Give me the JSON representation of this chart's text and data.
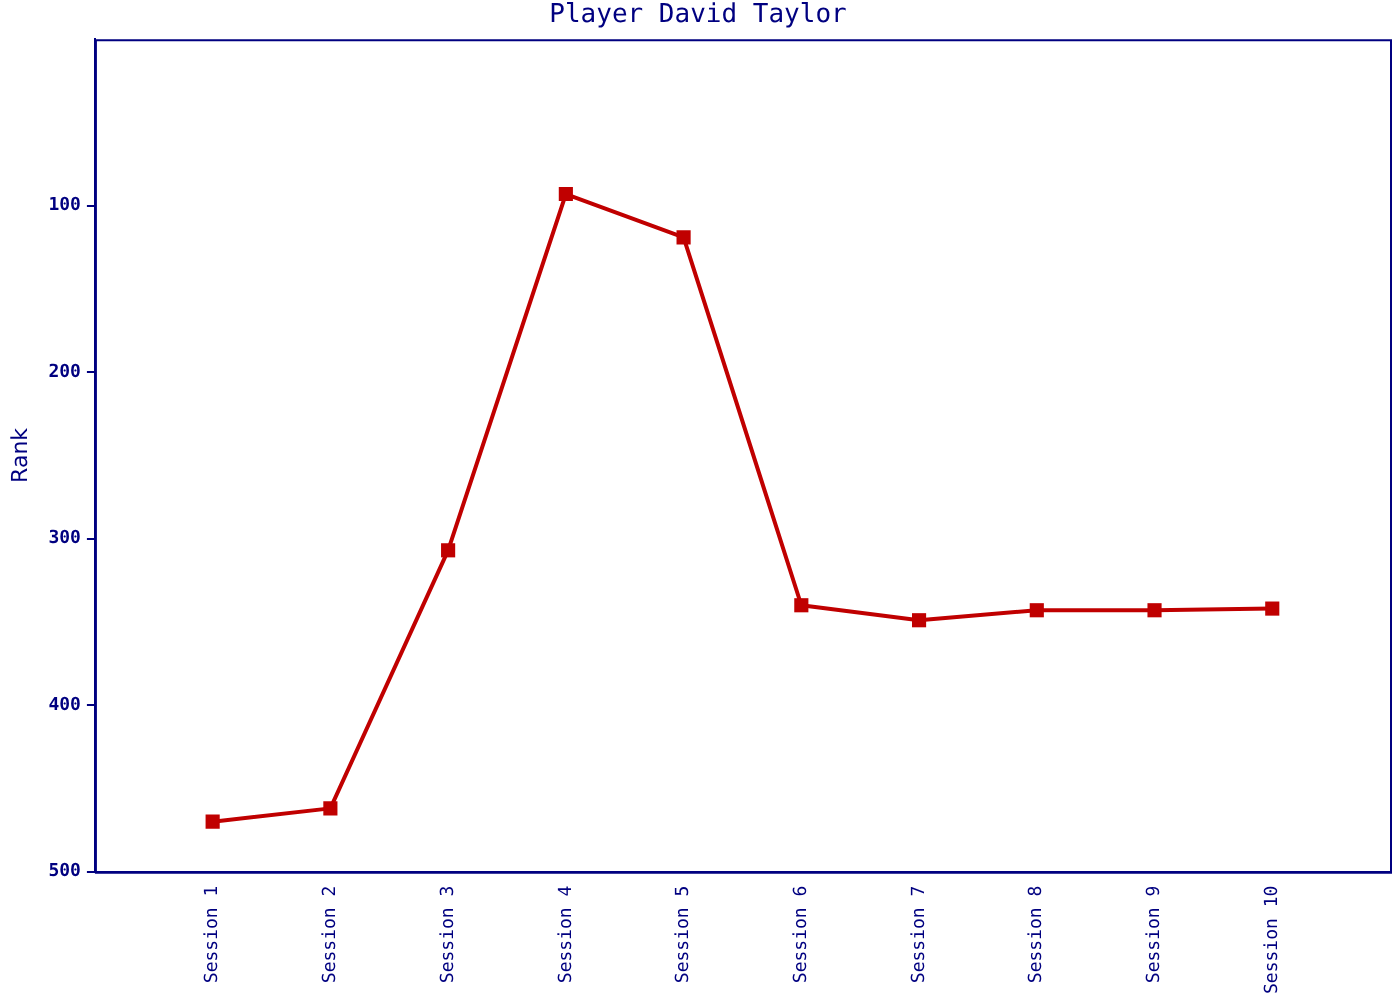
{
  "chart_data": {
    "type": "line",
    "title": "Player David Taylor",
    "ylabel": "Rank",
    "categories": [
      "Session 1",
      "Session 2",
      "Session 3",
      "Session 4",
      "Session 5",
      "Session 6",
      "Session 7",
      "Session 8",
      "Session 9",
      "Session 10"
    ],
    "series": [
      {
        "color": "#c00000",
        "values": [
          470,
          462,
          307,
          93,
          119,
          340,
          349,
          343,
          343,
          342
        ]
      }
    ],
    "ylim": [
      500,
      0
    ],
    "yticks": [
      100,
      200,
      300,
      400,
      500
    ],
    "grid": false,
    "legend": false,
    "marker": "square",
    "line_style": "solid"
  }
}
